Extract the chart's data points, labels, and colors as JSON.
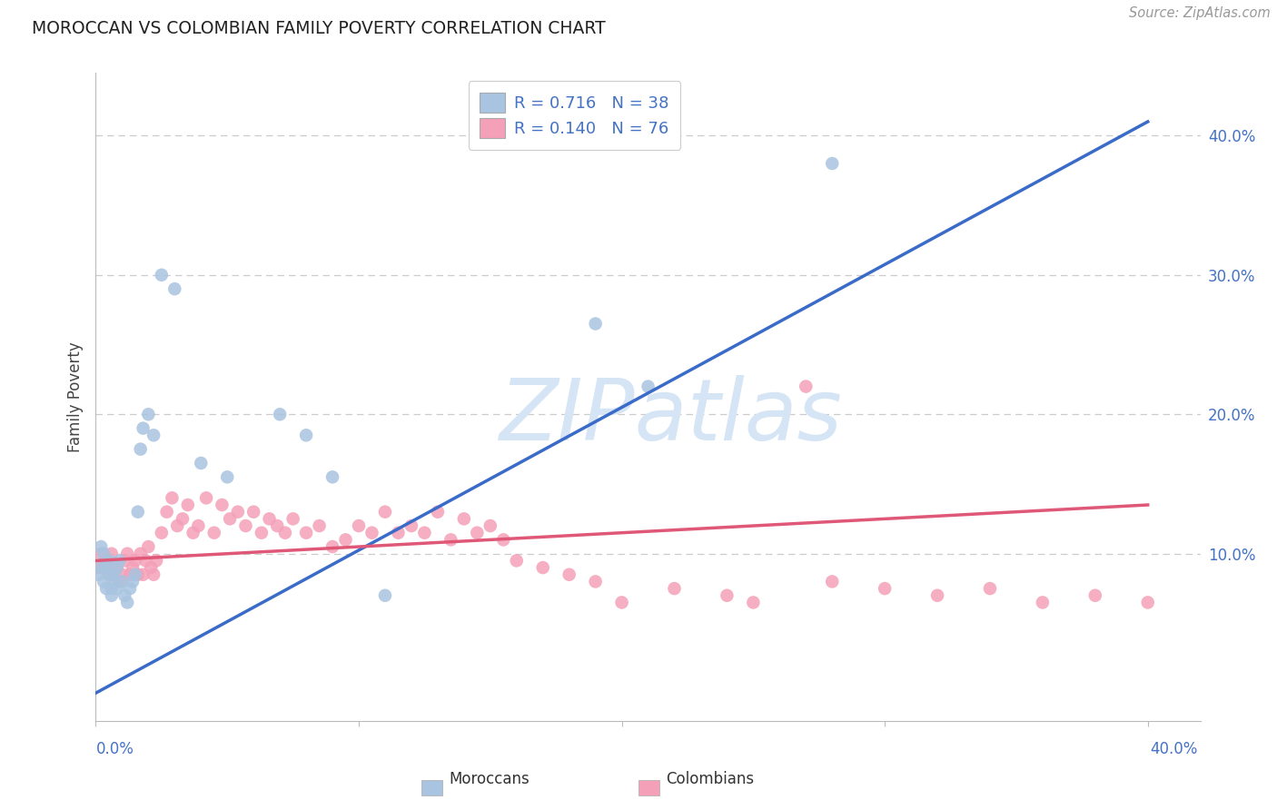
{
  "title": "MOROCCAN VS COLOMBIAN FAMILY POVERTY CORRELATION CHART",
  "source": "Source: ZipAtlas.com",
  "ylabel": "Family Poverty",
  "moroccan_R": 0.716,
  "moroccan_N": 38,
  "colombian_R": 0.14,
  "colombian_N": 76,
  "moroccan_color": "#a8c4e0",
  "colombian_color": "#f4a0b8",
  "moroccan_line_color": "#3a6bc8",
  "colombian_line_color": "#e05878",
  "tick_color": "#4472c4",
  "title_color": "#222222",
  "source_color": "#999999",
  "grid_color": "#cccccc",
  "watermark_text": "ZIPatlas",
  "watermark_color": "#d5e5f5",
  "xlim": [
    0.0,
    0.42
  ],
  "ylim": [
    -0.02,
    0.445
  ],
  "moroccan_line": [
    0.0,
    0.0,
    0.4,
    0.41
  ],
  "colombian_line": [
    0.0,
    0.095,
    0.4,
    0.135
  ],
  "moroccan_x": [
    0.001,
    0.002,
    0.002,
    0.003,
    0.003,
    0.004,
    0.004,
    0.005,
    0.005,
    0.006,
    0.006,
    0.007,
    0.007,
    0.008,
    0.008,
    0.009,
    0.01,
    0.011,
    0.012,
    0.013,
    0.014,
    0.015,
    0.016,
    0.017,
    0.018,
    0.02,
    0.022,
    0.025,
    0.03,
    0.04,
    0.05,
    0.07,
    0.08,
    0.09,
    0.11,
    0.19,
    0.21,
    0.28
  ],
  "moroccan_y": [
    0.085,
    0.09,
    0.105,
    0.1,
    0.08,
    0.075,
    0.09,
    0.085,
    0.095,
    0.075,
    0.07,
    0.08,
    0.085,
    0.075,
    0.09,
    0.095,
    0.08,
    0.07,
    0.065,
    0.075,
    0.08,
    0.085,
    0.13,
    0.175,
    0.19,
    0.2,
    0.185,
    0.3,
    0.29,
    0.165,
    0.155,
    0.2,
    0.185,
    0.155,
    0.07,
    0.265,
    0.22,
    0.38
  ],
  "colombian_x": [
    0.001,
    0.002,
    0.003,
    0.004,
    0.005,
    0.006,
    0.006,
    0.007,
    0.008,
    0.009,
    0.01,
    0.011,
    0.012,
    0.013,
    0.014,
    0.015,
    0.016,
    0.017,
    0.018,
    0.019,
    0.02,
    0.021,
    0.022,
    0.023,
    0.025,
    0.027,
    0.029,
    0.031,
    0.033,
    0.035,
    0.037,
    0.039,
    0.042,
    0.045,
    0.048,
    0.051,
    0.054,
    0.057,
    0.06,
    0.063,
    0.066,
    0.069,
    0.072,
    0.075,
    0.08,
    0.085,
    0.09,
    0.095,
    0.1,
    0.105,
    0.11,
    0.115,
    0.12,
    0.125,
    0.13,
    0.135,
    0.14,
    0.145,
    0.15,
    0.155,
    0.16,
    0.17,
    0.18,
    0.19,
    0.2,
    0.22,
    0.24,
    0.25,
    0.27,
    0.28,
    0.3,
    0.32,
    0.34,
    0.36,
    0.38,
    0.4
  ],
  "colombian_y": [
    0.09,
    0.1,
    0.09,
    0.095,
    0.085,
    0.1,
    0.09,
    0.085,
    0.09,
    0.08,
    0.085,
    0.095,
    0.1,
    0.085,
    0.09,
    0.095,
    0.085,
    0.1,
    0.085,
    0.095,
    0.105,
    0.09,
    0.085,
    0.095,
    0.115,
    0.13,
    0.14,
    0.12,
    0.125,
    0.135,
    0.115,
    0.12,
    0.14,
    0.115,
    0.135,
    0.125,
    0.13,
    0.12,
    0.13,
    0.115,
    0.125,
    0.12,
    0.115,
    0.125,
    0.115,
    0.12,
    0.105,
    0.11,
    0.12,
    0.115,
    0.13,
    0.115,
    0.12,
    0.115,
    0.13,
    0.11,
    0.125,
    0.115,
    0.12,
    0.11,
    0.095,
    0.09,
    0.085,
    0.08,
    0.065,
    0.075,
    0.07,
    0.065,
    0.22,
    0.08,
    0.075,
    0.07,
    0.075,
    0.065,
    0.07,
    0.065
  ]
}
